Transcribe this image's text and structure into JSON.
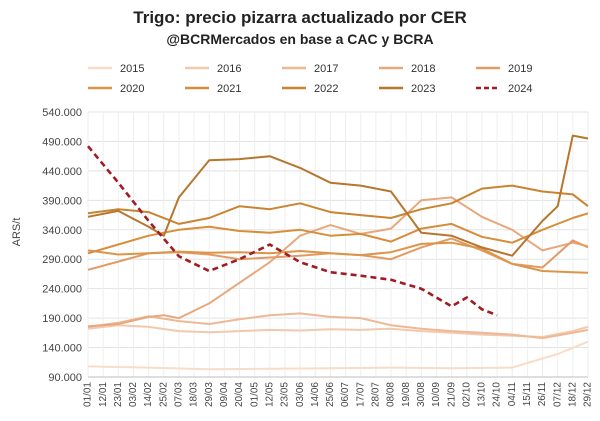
{
  "chart_data": {
    "type": "line",
    "title": "Trigo: precio pizarra actualizado por CER",
    "subtitle": "@BCRMercados en base a CAC y BCRA",
    "ylabel": "ARS/t",
    "xlabel": "",
    "ylim": [
      90000,
      540000
    ],
    "y_ticks": [
      90000,
      140000,
      190000,
      240000,
      290000,
      340000,
      390000,
      440000,
      490000,
      540000
    ],
    "y_tick_labels": [
      "90.000",
      "140.000",
      "190.000",
      "240.000",
      "290.000",
      "340.000",
      "390.000",
      "440.000",
      "490.000",
      "540.000"
    ],
    "grid": true,
    "x_tick_labels": [
      "01/01",
      "12/01",
      "23/01",
      "03/02",
      "14/02",
      "25/02",
      "07/03",
      "18/03",
      "29/03",
      "09/04",
      "20/04",
      "01/05",
      "12/05",
      "23/05",
      "03/06",
      "14/06",
      "25/06",
      "06/07",
      "17/07",
      "28/07",
      "08/08",
      "19/08",
      "30/08",
      "10/09",
      "21/09",
      "02/10",
      "13/10",
      "24/10",
      "04/11",
      "15/11",
      "26/11",
      "07/12",
      "18/12",
      "29/12"
    ],
    "legend_position": "top",
    "series": [
      {
        "name": "2015",
        "color": "#f7dcc8",
        "dash": false,
        "x": [
          0,
          4,
          8,
          12,
          16,
          20,
          24,
          28,
          31,
          33
        ],
        "values": [
          108000,
          106000,
          103000,
          104000,
          105000,
          106000,
          105000,
          106000,
          129000,
          150000
        ]
      },
      {
        "name": "2016",
        "color": "#f2c9ad",
        "dash": false,
        "x": [
          0,
          2,
          4,
          6,
          8,
          10,
          12,
          14,
          16,
          18,
          20,
          22,
          24,
          26,
          28,
          30,
          32,
          33
        ],
        "values": [
          172000,
          178000,
          175000,
          168000,
          166000,
          168000,
          170000,
          169000,
          171000,
          170000,
          172000,
          168000,
          165000,
          162000,
          160000,
          158000,
          168000,
          175000
        ]
      },
      {
        "name": "2017",
        "color": "#eeb896",
        "dash": false,
        "x": [
          0,
          2,
          4,
          6,
          8,
          10,
          12,
          14,
          16,
          18,
          20,
          22,
          24,
          26,
          28,
          30,
          32,
          33
        ],
        "values": [
          175000,
          182000,
          193000,
          185000,
          180000,
          188000,
          195000,
          198000,
          192000,
          190000,
          178000,
          172000,
          168000,
          165000,
          162000,
          156000,
          165000,
          170000
        ]
      },
      {
        "name": "2018",
        "color": "#e8a87c",
        "dash": false,
        "x": [
          0,
          2,
          4,
          5,
          6,
          8,
          10,
          12,
          14,
          16,
          18,
          20,
          22,
          24,
          26,
          28,
          30,
          32,
          33
        ],
        "values": [
          176000,
          180000,
          192000,
          195000,
          190000,
          215000,
          250000,
          285000,
          330000,
          348000,
          333000,
          342000,
          390000,
          395000,
          362000,
          340000,
          305000,
          318000,
          312000
        ]
      },
      {
        "name": "2019",
        "color": "#e39a62",
        "dash": false,
        "x": [
          0,
          2,
          4,
          6,
          8,
          10,
          12,
          14,
          16,
          18,
          20,
          22,
          24,
          26,
          28,
          30,
          32,
          33
        ],
        "values": [
          272000,
          286000,
          300000,
          302000,
          298000,
          290000,
          293000,
          296000,
          300000,
          297000,
          290000,
          310000,
          325000,
          305000,
          282000,
          276000,
          322000,
          310000
        ]
      },
      {
        "name": "2020",
        "color": "#dc9548",
        "dash": false,
        "x": [
          0,
          2,
          4,
          6,
          8,
          10,
          12,
          14,
          16,
          18,
          20,
          22,
          24,
          26,
          28,
          30,
          32,
          33
        ],
        "values": [
          305000,
          298000,
          300000,
          303000,
          301000,
          302000,
          300000,
          304000,
          300000,
          297000,
          302000,
          316000,
          318000,
          308000,
          282000,
          270000,
          268000,
          267000
        ]
      },
      {
        "name": "2021",
        "color": "#d68e3a",
        "dash": false,
        "x": [
          0,
          2,
          4,
          6,
          8,
          10,
          12,
          14,
          16,
          18,
          20,
          22,
          24,
          26,
          28,
          30,
          32,
          33
        ],
        "values": [
          300000,
          315000,
          330000,
          340000,
          345000,
          338000,
          335000,
          340000,
          330000,
          333000,
          320000,
          342000,
          350000,
          328000,
          318000,
          340000,
          360000,
          368000
        ]
      },
      {
        "name": "2022",
        "color": "#c98430",
        "dash": false,
        "x": [
          0,
          2,
          4,
          6,
          8,
          10,
          12,
          14,
          16,
          18,
          20,
          22,
          24,
          26,
          28,
          30,
          32,
          33
        ],
        "values": [
          368000,
          375000,
          370000,
          350000,
          360000,
          380000,
          375000,
          385000,
          370000,
          365000,
          360000,
          375000,
          385000,
          410000,
          415000,
          405000,
          400000,
          380000
        ]
      },
      {
        "name": "2023",
        "color": "#b7762e",
        "dash": false,
        "x": [
          0,
          2,
          4,
          5,
          6,
          8,
          10,
          12,
          14,
          16,
          18,
          20,
          22,
          24,
          26,
          28,
          30,
          31,
          32,
          33
        ],
        "values": [
          362000,
          372000,
          345000,
          330000,
          395000,
          458000,
          460000,
          465000,
          445000,
          420000,
          415000,
          405000,
          335000,
          330000,
          310000,
          296000,
          355000,
          380000,
          500000,
          495000
        ]
      },
      {
        "name": "2024",
        "color": "#a01c22",
        "dash": true,
        "x": [
          0,
          2,
          4,
          6,
          8,
          10,
          12,
          14,
          16,
          18,
          20,
          22,
          24,
          25,
          26,
          27
        ],
        "values": [
          482000,
          420000,
          355000,
          295000,
          270000,
          290000,
          315000,
          285000,
          268000,
          262000,
          255000,
          240000,
          210000,
          225000,
          205000,
          195000
        ]
      }
    ]
  }
}
